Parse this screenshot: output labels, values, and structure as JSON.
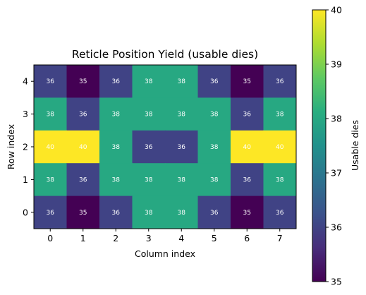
{
  "chart_data": {
    "type": "heatmap",
    "title": "Reticle Position Yield (usable dies)",
    "xlabel": "Column index",
    "ylabel": "Row index",
    "x_ticks": [
      "0",
      "1",
      "2",
      "3",
      "4",
      "5",
      "6",
      "7"
    ],
    "y_ticks": [
      "0",
      "1",
      "2",
      "3",
      "4"
    ],
    "values": [
      [
        36,
        35,
        36,
        38,
        38,
        36,
        35,
        36
      ],
      [
        38,
        36,
        38,
        38,
        38,
        38,
        36,
        38
      ],
      [
        40,
        40,
        38,
        36,
        36,
        38,
        40,
        40
      ],
      [
        38,
        36,
        38,
        38,
        38,
        38,
        36,
        38
      ],
      [
        36,
        35,
        36,
        38,
        38,
        36,
        35,
        36
      ]
    ],
    "row_order": "top-to-bottom rows correspond to row index 4,3,2,1,0",
    "colormap": "viridis",
    "vmin": 35,
    "vmax": 40,
    "colorbar": {
      "label": "Usable dies",
      "ticks": [
        "35",
        "36",
        "37",
        "38",
        "39",
        "40"
      ]
    },
    "grid": false,
    "legend": "colorbar-right"
  }
}
